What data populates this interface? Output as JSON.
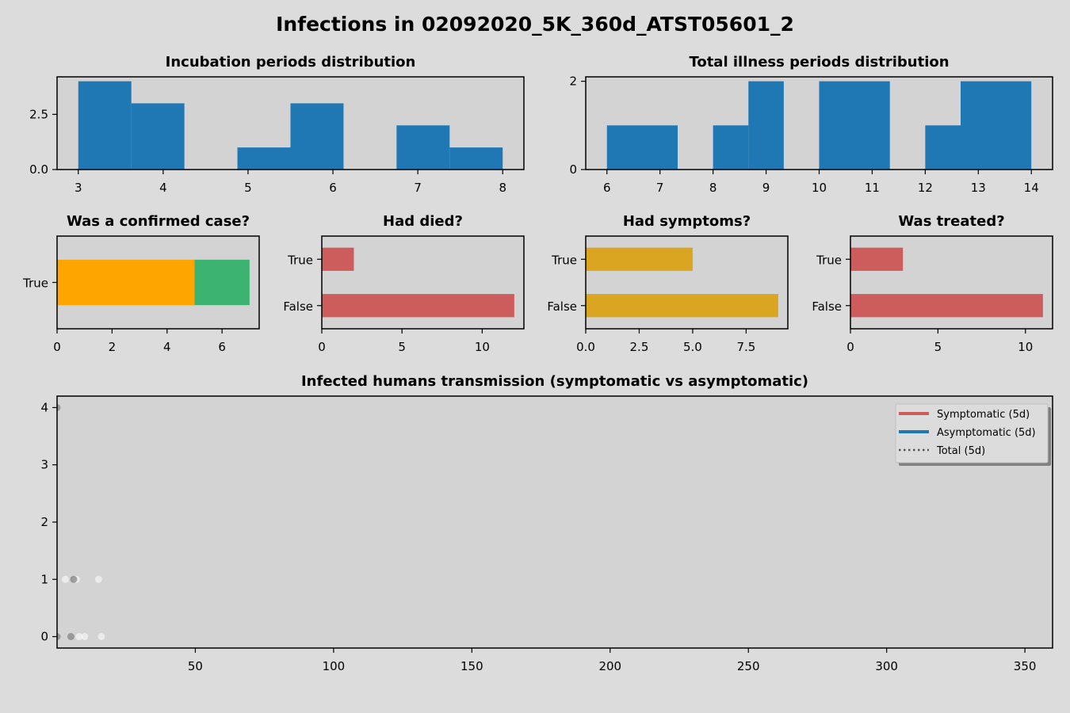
{
  "figure": {
    "title": "Infections in 02092020_5K_360d_ATST05601_2"
  },
  "colors": {
    "hist": "#1f77b4",
    "died": "#cd5c5c",
    "symptoms": "#daa520",
    "confirmed_true": "#ffa500",
    "confirmed_extra": "#3cb371",
    "symptomatic": "#cd5c5c",
    "asymptomatic": "#1f77b4",
    "total": "#555555",
    "axes_bg": "#d3d3d3"
  },
  "chart_data": [
    {
      "id": "incubation",
      "type": "bar",
      "title": "Incubation periods distribution",
      "bins": [
        {
          "x0": 3.0,
          "x1": 3.625,
          "value": 4
        },
        {
          "x0": 3.625,
          "x1": 4.25,
          "value": 3
        },
        {
          "x0": 4.875,
          "x1": 5.5,
          "value": 1
        },
        {
          "x0": 5.5,
          "x1": 6.125,
          "value": 3
        },
        {
          "x0": 6.75,
          "x1": 7.375,
          "value": 2
        },
        {
          "x0": 7.375,
          "x1": 8.0,
          "value": 1
        }
      ],
      "xlim": [
        2.75,
        8.25
      ],
      "ylim": [
        0,
        4.2
      ],
      "xticks": [
        3,
        4,
        5,
        6,
        7,
        8
      ],
      "xtick_labels": [
        "3",
        "4",
        "5",
        "6",
        "7",
        "8"
      ],
      "yticks": [
        0,
        2.5
      ],
      "ytick_labels": [
        "0.0",
        "2.5"
      ]
    },
    {
      "id": "illness",
      "type": "bar",
      "title": "Total illness periods distribution",
      "bins": [
        {
          "x0": 6.0,
          "x1": 7.333,
          "value": 1
        },
        {
          "x0": 8.0,
          "x1": 8.667,
          "value": 1
        },
        {
          "x0": 8.667,
          "x1": 9.333,
          "value": 2
        },
        {
          "x0": 10.0,
          "x1": 11.333,
          "value": 2
        },
        {
          "x0": 12.0,
          "x1": 12.667,
          "value": 1
        },
        {
          "x0": 12.667,
          "x1": 14.0,
          "value": 2
        }
      ],
      "xlim": [
        5.6,
        14.4
      ],
      "ylim": [
        0,
        2.1
      ],
      "xticks": [
        6,
        7,
        8,
        9,
        10,
        11,
        12,
        13,
        14
      ],
      "xtick_labels": [
        "6",
        "7",
        "8",
        "9",
        "10",
        "11",
        "12",
        "13",
        "14"
      ],
      "yticks": [
        0,
        2
      ],
      "ytick_labels": [
        "0",
        "2"
      ]
    },
    {
      "id": "confirmed",
      "type": "bar",
      "orientation": "horizontal-stacked",
      "title": "Was a confirmed case?",
      "categories": [
        "True"
      ],
      "series": [
        {
          "values": [
            5
          ]
        },
        {
          "values": [
            2
          ]
        }
      ],
      "xlim": [
        0,
        7.35
      ],
      "xticks": [
        0,
        2,
        4,
        6
      ],
      "xtick_labels": [
        "0",
        "2",
        "4",
        "6"
      ]
    },
    {
      "id": "died",
      "type": "bar",
      "orientation": "horizontal",
      "title": "Had died?",
      "categories": [
        "True",
        "False"
      ],
      "values": [
        2,
        12
      ],
      "xlim": [
        0,
        12.6
      ],
      "xticks": [
        0,
        5,
        10
      ],
      "xtick_labels": [
        "0",
        "5",
        "10"
      ]
    },
    {
      "id": "symptoms",
      "type": "bar",
      "orientation": "horizontal",
      "title": "Had symptoms?",
      "categories": [
        "True",
        "False"
      ],
      "values": [
        5,
        9
      ],
      "xlim": [
        0,
        9.45
      ],
      "xticks": [
        0,
        2.5,
        5,
        7.5
      ],
      "xtick_labels": [
        "0.0",
        "2.5",
        "5.0",
        "7.5"
      ]
    },
    {
      "id": "treated",
      "type": "bar",
      "orientation": "horizontal",
      "title": "Was treated?",
      "categories": [
        "True",
        "False"
      ],
      "values": [
        3,
        11
      ],
      "xlim": [
        0,
        11.55
      ],
      "xticks": [
        0,
        5,
        10
      ],
      "xtick_labels": [
        "0",
        "5",
        "10"
      ]
    },
    {
      "id": "transmission",
      "type": "scatter",
      "title": "Infected humans transmission (symptomatic vs asymptomatic)",
      "xlim": [
        0,
        360
      ],
      "ylim": [
        -0.2,
        4.2
      ],
      "xticks": [
        50,
        100,
        150,
        200,
        250,
        300,
        350
      ],
      "xtick_labels": [
        "50",
        "100",
        "150",
        "200",
        "250",
        "300",
        "350"
      ],
      "yticks": [
        0,
        1,
        2,
        3,
        4
      ],
      "ytick_labels": [
        "0",
        "1",
        "2",
        "3",
        "4"
      ],
      "points_dark": [
        [
          0,
          4
        ],
        [
          0,
          0
        ],
        [
          5,
          0
        ],
        [
          6,
          1
        ]
      ],
      "points_light": [
        [
          3,
          1
        ],
        [
          7,
          1
        ],
        [
          8,
          0
        ],
        [
          10,
          0
        ],
        [
          15,
          1
        ],
        [
          16,
          0
        ]
      ],
      "legend": [
        {
          "label": "Symptomatic (5d)",
          "style": "solid",
          "colorKey": "symptomatic"
        },
        {
          "label": "Asymptomatic (5d)",
          "style": "solid",
          "colorKey": "asymptomatic"
        },
        {
          "label": "Total (5d)",
          "style": "dotted",
          "colorKey": "total"
        }
      ],
      "legend_position": "upper right"
    }
  ]
}
